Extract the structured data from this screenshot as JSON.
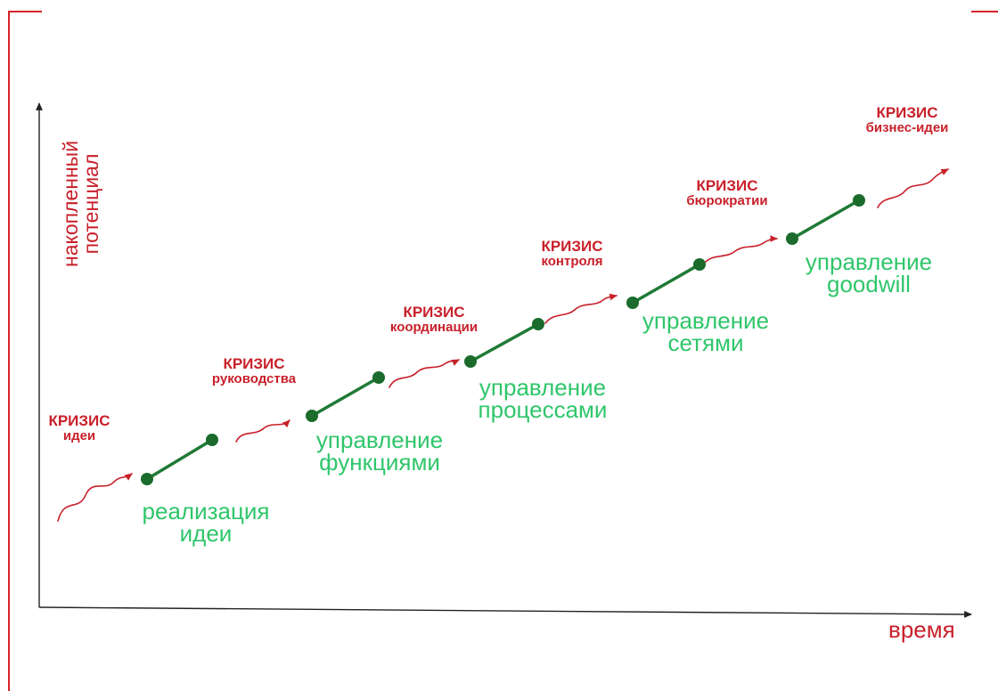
{
  "axes": {
    "y_label_line1": "накопленный",
    "y_label_line2": "потенциал",
    "x_label": "время"
  },
  "crises": [
    {
      "line1": "КРИЗИС",
      "line2": "идеи"
    },
    {
      "line1": "КРИЗИС",
      "line2": "руководства"
    },
    {
      "line1": "КРИЗИС",
      "line2": "координации"
    },
    {
      "line1": "КРИЗИС",
      "line2": "контроля"
    },
    {
      "line1": "КРИЗИС",
      "line2": "бюрократии"
    },
    {
      "line1": "КРИЗИС",
      "line2": "бизнес-идеи"
    }
  ],
  "stages": [
    {
      "line1": "реализация",
      "line2": "идеи"
    },
    {
      "line1": "управление",
      "line2": "функциями"
    },
    {
      "line1": "управление",
      "line2": "процессами"
    },
    {
      "line1": "управление",
      "line2": "сетями"
    },
    {
      "line1": "управление",
      "line2": "goodwill"
    }
  ],
  "colors": {
    "crisis": "#c8202a",
    "stage_text": "#2fc66a",
    "stage_line": "#1f7a35",
    "stage_dot": "#1a6b2c",
    "axis": "#222222",
    "frame": "#d9232a"
  }
}
